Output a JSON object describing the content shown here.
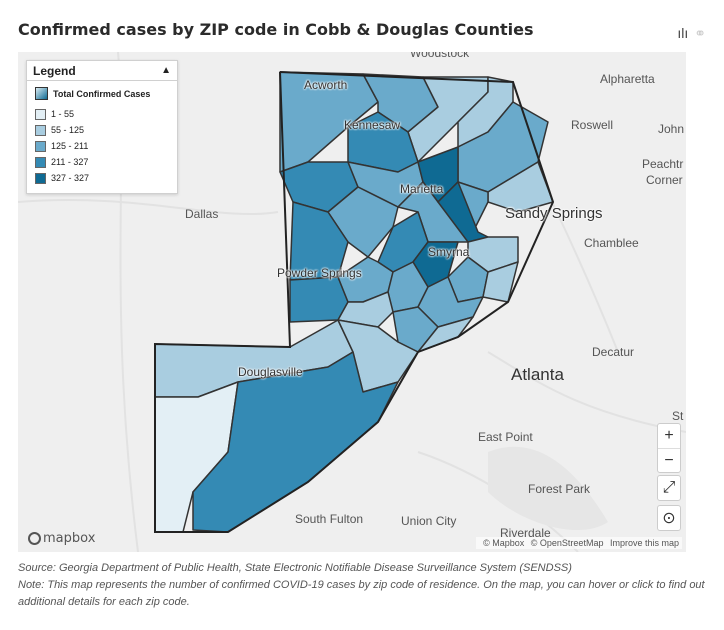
{
  "title": "Confirmed cases by ZIP code in Cobb & Douglas Counties",
  "icons": {
    "chart": "bar-chart-icon",
    "link": "link-icon"
  },
  "legend": {
    "header": "Legend",
    "field": "Total Confirmed Cases",
    "items": [
      {
        "label": "1 - 55",
        "color": "#e3eff5"
      },
      {
        "label": "55 - 125",
        "color": "#a9cde0"
      },
      {
        "label": "125 - 211",
        "color": "#6aaacb"
      },
      {
        "label": "211 - 327",
        "color": "#348ab4"
      },
      {
        "label": "327 - 327",
        "color": "#0f6a93"
      }
    ]
  },
  "cities": {
    "woodstock": "Woodstock",
    "alpharetta": "Alpharetta",
    "roswell": "Roswell",
    "johns": "John",
    "peachtree": "Peachtr",
    "corners": "Corner",
    "acworth": "Acworth",
    "kennesaw": "Kennesaw",
    "marietta": "Marietta",
    "sandy_springs": "Sandy Springs",
    "chamblee": "Chamblee",
    "dallas": "Dallas",
    "powder_springs": "Powder Springs",
    "smyrna": "Smyrna",
    "decatur": "Decatur",
    "douglasville": "Douglasville",
    "atlanta": "Atlanta",
    "st": "St",
    "east_point": "East Point",
    "forest_park": "Forest Park",
    "south_fulton": "South Fulton",
    "union_city": "Union City",
    "riverdale": "Riverdale"
  },
  "controls": {
    "zoom_in": "+",
    "zoom_out": "−",
    "fullscreen": "⤢",
    "locate": "⊙"
  },
  "attribution": {
    "mapbox": "© Mapbox",
    "osm": "© OpenStreetMap",
    "improve": "Improve this map"
  },
  "logo": "mapbox",
  "source": "Source: Georgia Department of Public Health, State Electronic Notifiable Disease Surveillance System (SENDSS)",
  "note": "Note: This map represents the number of confirmed COVID-19 cases by zip code of residence.  On the map, you can hover or click to find out additional details for each zip code."
}
